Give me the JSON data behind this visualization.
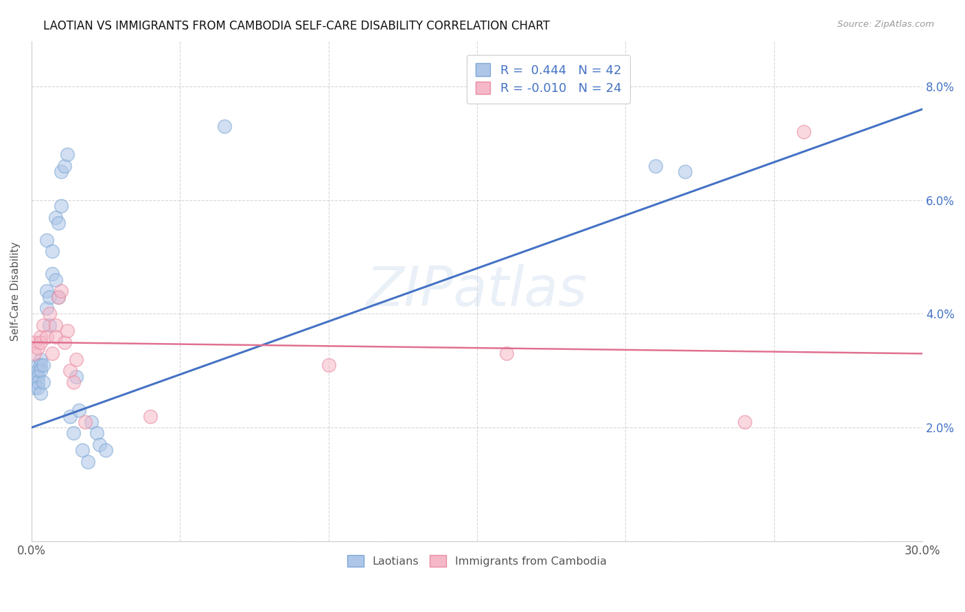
{
  "title": "LAOTIAN VS IMMIGRANTS FROM CAMBODIA SELF-CARE DISABILITY CORRELATION CHART",
  "source": "Source: ZipAtlas.com",
  "ylabel": "Self-Care Disability",
  "xlim": [
    0.0,
    0.3
  ],
  "ylim": [
    0.0,
    0.088
  ],
  "xtick_positions": [
    0.0,
    0.05,
    0.1,
    0.15,
    0.2,
    0.25,
    0.3
  ],
  "xtick_labels": [
    "0.0%",
    "",
    "",
    "",
    "",
    "",
    "30.0%"
  ],
  "ytick_positions": [
    0.0,
    0.02,
    0.04,
    0.06,
    0.08
  ],
  "ytick_labels_right": [
    "",
    "2.0%",
    "4.0%",
    "6.0%",
    "8.0%"
  ],
  "blue_fill": "#aec6e8",
  "blue_edge": "#7ba7d4",
  "pink_fill": "#f5b8c8",
  "pink_edge": "#e88aa0",
  "blue_line_color": "#4472c4",
  "pink_line_color": "#e07090",
  "watermark": "ZIPatlas",
  "legend_line1": "R =  0.444   N = 42",
  "legend_line2": "R = -0.010   N = 24",
  "legend_color": "#4472c4",
  "blue_x": [
    0.001,
    0.001,
    0.001,
    0.002,
    0.002,
    0.002,
    0.002,
    0.002,
    0.003,
    0.003,
    0.003,
    0.003,
    0.004,
    0.004,
    0.005,
    0.005,
    0.005,
    0.006,
    0.006,
    0.007,
    0.007,
    0.008,
    0.008,
    0.009,
    0.009,
    0.01,
    0.01,
    0.011,
    0.012,
    0.013,
    0.014,
    0.015,
    0.016,
    0.017,
    0.019,
    0.02,
    0.022,
    0.023,
    0.025,
    0.065,
    0.21,
    0.22
  ],
  "blue_y": [
    0.029,
    0.028,
    0.027,
    0.031,
    0.03,
    0.029,
    0.028,
    0.027,
    0.032,
    0.031,
    0.03,
    0.026,
    0.031,
    0.028,
    0.053,
    0.044,
    0.041,
    0.043,
    0.038,
    0.051,
    0.047,
    0.057,
    0.046,
    0.056,
    0.043,
    0.059,
    0.065,
    0.066,
    0.068,
    0.022,
    0.019,
    0.029,
    0.023,
    0.016,
    0.014,
    0.021,
    0.019,
    0.017,
    0.016,
    0.073,
    0.066,
    0.065
  ],
  "pink_x": [
    0.001,
    0.001,
    0.002,
    0.003,
    0.003,
    0.004,
    0.005,
    0.006,
    0.007,
    0.008,
    0.008,
    0.009,
    0.01,
    0.011,
    0.012,
    0.013,
    0.014,
    0.015,
    0.018,
    0.04,
    0.1,
    0.16,
    0.24,
    0.26
  ],
  "pink_y": [
    0.035,
    0.033,
    0.034,
    0.036,
    0.035,
    0.038,
    0.036,
    0.04,
    0.033,
    0.038,
    0.036,
    0.043,
    0.044,
    0.035,
    0.037,
    0.03,
    0.028,
    0.032,
    0.021,
    0.022,
    0.031,
    0.033,
    0.021,
    0.072
  ],
  "blue_trend_x": [
    0.0,
    0.3
  ],
  "blue_trend_y": [
    0.02,
    0.076
  ],
  "pink_trend_x": [
    0.0,
    0.3
  ],
  "pink_trend_y": [
    0.035,
    0.033
  ]
}
